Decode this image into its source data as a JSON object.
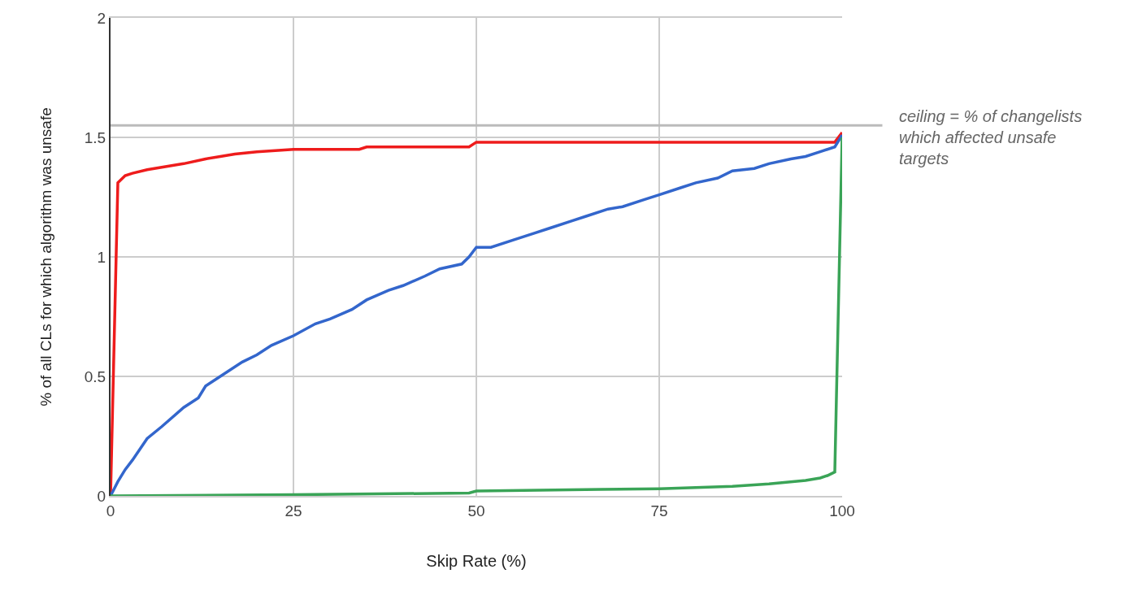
{
  "chart_data": {
    "type": "line",
    "xlabel": "Skip Rate (%)",
    "ylabel": "% of all CLs for which algorithm was unsafe",
    "xlim": [
      0,
      100
    ],
    "xticks": [
      0,
      25,
      50,
      75,
      100
    ],
    "ylim": [
      0,
      2
    ],
    "yticks": [
      0,
      0.5,
      1,
      1.5,
      2
    ],
    "grid": true,
    "marker": "none",
    "line_style": "solid",
    "series": [
      {
        "color": "#ee1c1c",
        "x": [
          0,
          1,
          2,
          3,
          5,
          8,
          10,
          13,
          15,
          17,
          20,
          25,
          34,
          35,
          49,
          50,
          99,
          100
        ],
        "values": [
          0,
          1.31,
          1.34,
          1.35,
          1.365,
          1.38,
          1.39,
          1.41,
          1.42,
          1.43,
          1.44,
          1.45,
          1.45,
          1.46,
          1.46,
          1.48,
          1.48,
          1.52
        ]
      },
      {
        "color": "#3366cc",
        "x": [
          0,
          1,
          2,
          3,
          5,
          7,
          10,
          12,
          13,
          15,
          18,
          20,
          22,
          25,
          28,
          30,
          33,
          35,
          38,
          40,
          43,
          45,
          48,
          49,
          50,
          52,
          55,
          58,
          60,
          63,
          65,
          68,
          70,
          73,
          75,
          78,
          80,
          83,
          85,
          88,
          90,
          93,
          95,
          97,
          99,
          100
        ],
        "values": [
          0,
          0.06,
          0.11,
          0.15,
          0.24,
          0.29,
          0.37,
          0.41,
          0.46,
          0.5,
          0.56,
          0.59,
          0.63,
          0.67,
          0.72,
          0.74,
          0.78,
          0.82,
          0.86,
          0.88,
          0.92,
          0.95,
          0.97,
          1.0,
          1.04,
          1.04,
          1.07,
          1.1,
          1.12,
          1.15,
          1.17,
          1.2,
          1.21,
          1.24,
          1.26,
          1.29,
          1.31,
          1.33,
          1.36,
          1.37,
          1.39,
          1.41,
          1.42,
          1.44,
          1.46,
          1.51
        ]
      },
      {
        "color": "#3aa457",
        "x": [
          0,
          25,
          49,
          50,
          67,
          75,
          85,
          90,
          95,
          97,
          98,
          99,
          100
        ],
        "values": [
          0,
          0.005,
          0.012,
          0.02,
          0.027,
          0.03,
          0.04,
          0.05,
          0.065,
          0.075,
          0.085,
          0.1,
          1.5
        ]
      }
    ],
    "ref_lines": [
      {
        "axis": "y",
        "value": 1.55,
        "label": "ceiling = % of changelists\nwhich affected unsafe\ntargets",
        "color": "#bbbbbb"
      }
    ]
  }
}
